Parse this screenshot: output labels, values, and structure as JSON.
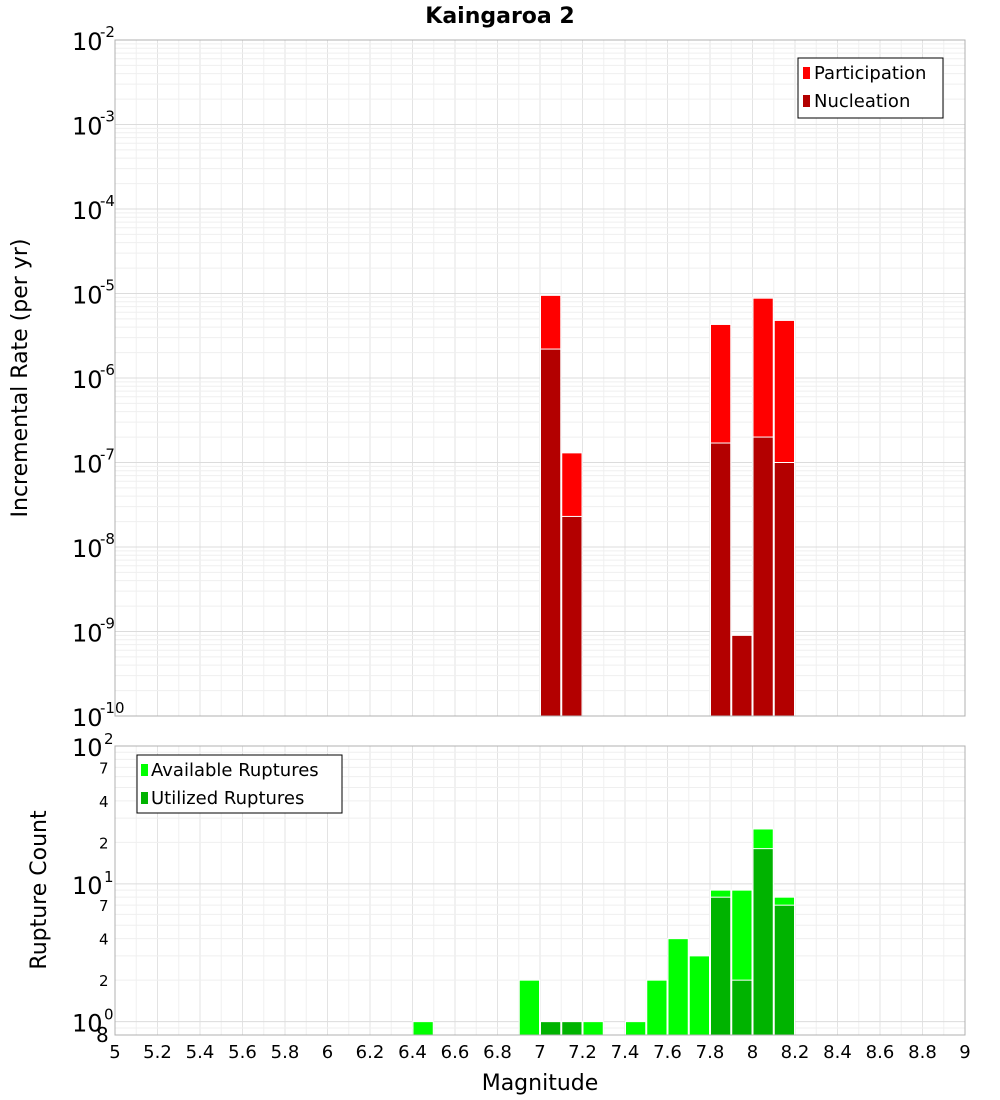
{
  "chart_data": [
    {
      "type": "bar",
      "title": "Kaingaroa 2",
      "ylabel": "Incremental Rate (per yr)",
      "y_scale": "log",
      "ylim": [
        1e-10,
        0.01
      ],
      "xlim": [
        5,
        9
      ],
      "y_ticks": [
        {
          "base": "10",
          "exp": "-2"
        },
        {
          "base": "10",
          "exp": "-3"
        },
        {
          "base": "10",
          "exp": "-4"
        },
        {
          "base": "10",
          "exp": "-5"
        },
        {
          "base": "10",
          "exp": "-6"
        },
        {
          "base": "10",
          "exp": "-7"
        },
        {
          "base": "10",
          "exp": "-8"
        },
        {
          "base": "10",
          "exp": "-9"
        },
        {
          "base": "10",
          "exp": "-10"
        }
      ],
      "legend": {
        "placement": "top-right"
      },
      "colors": {
        "Participation": "#ff0000",
        "Nucleation": "#b30000"
      },
      "series": [
        {
          "name": "Participation",
          "x": [
            7.05,
            7.15,
            7.85,
            7.95,
            8.05,
            8.15
          ],
          "values": [
            9.5e-06,
            1.3e-07,
            4.3e-06,
            9e-10,
            8.8e-06,
            4.8e-06
          ]
        },
        {
          "name": "Nucleation",
          "x": [
            7.05,
            7.15,
            7.85,
            7.95,
            8.05,
            8.15
          ],
          "values": [
            2.2e-06,
            2.3e-08,
            1.7e-07,
            9e-10,
            2e-07,
            1e-07
          ]
        }
      ],
      "grid": true
    },
    {
      "type": "bar",
      "ylabel": "Rupture Count",
      "xlabel": "Magnitude",
      "y_scale": "log",
      "ylim": [
        0.8,
        100
      ],
      "xlim": [
        5,
        9
      ],
      "x_ticks": [
        "5",
        "5.2",
        "5.4",
        "5.6",
        "5.8",
        "6",
        "6.2",
        "6.4",
        "6.6",
        "6.8",
        "7",
        "7.2",
        "7.4",
        "7.6",
        "7.8",
        "8",
        "8.2",
        "8.4",
        "8.6",
        "8.8",
        "9"
      ],
      "y_major_ticks": [
        {
          "base": "10",
          "exp": "2"
        },
        {
          "base": "10",
          "exp": "1"
        },
        {
          "base": "10",
          "exp": "0"
        }
      ],
      "y_minor_labels": [
        "7",
        "4",
        "2",
        "7",
        "4",
        "2",
        "8"
      ],
      "legend": {
        "placement": "top-left"
      },
      "colors": {
        "Available Ruptures": "#00ff00",
        "Utilized Ruptures": "#00b300"
      },
      "series": [
        {
          "name": "Available Ruptures",
          "x": [
            6.45,
            6.95,
            7.05,
            7.15,
            7.25,
            7.45,
            7.55,
            7.65,
            7.75,
            7.85,
            7.95,
            8.05,
            8.15
          ],
          "values": [
            1,
            2,
            1,
            1,
            1,
            1,
            2,
            4,
            3,
            9,
            9,
            25,
            8
          ]
        },
        {
          "name": "Utilized Ruptures",
          "x": [
            7.05,
            7.15,
            7.85,
            7.95,
            8.05,
            8.15
          ],
          "values": [
            1,
            1,
            8,
            2,
            18,
            7
          ]
        }
      ],
      "grid": true
    }
  ]
}
